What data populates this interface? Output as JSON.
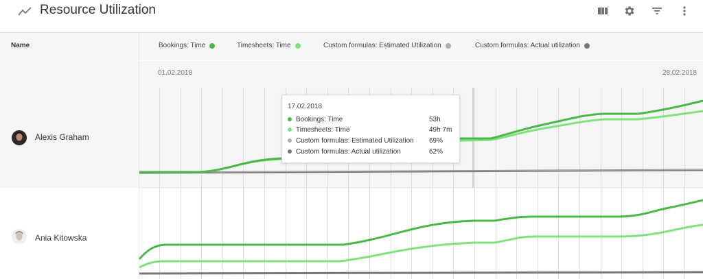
{
  "header": {
    "title": "Resource Utilization",
    "icons": [
      "trending-icon",
      "columns-icon",
      "gear-icon",
      "filter-icon",
      "more-vert-icon"
    ]
  },
  "table": {
    "name_column_label": "Name"
  },
  "legend": [
    {
      "label": "Bookings: Time",
      "color": "#4cb748"
    },
    {
      "label": "Timesheets: Time",
      "color": "#82e07e"
    },
    {
      "label": "Custom formulas: Estimated Utilization",
      "color": "#b0b0b0"
    },
    {
      "label": "Custom formulas: Actual utilization",
      "color": "#777777"
    }
  ],
  "dates": {
    "start": "01.02.2018",
    "end": "28.02.2018"
  },
  "rows": [
    {
      "name": "Alexis Graham"
    },
    {
      "name": "Ania Kitowska"
    }
  ],
  "tooltip": {
    "date": "17.02.2018",
    "items": [
      {
        "label": "Bookings: Time",
        "value": "53h",
        "color": "#4cb748"
      },
      {
        "label": "Timesheets: Time",
        "value": "49h 7m",
        "color": "#82e07e"
      },
      {
        "label": "Custom formulas: Estimated Utilization",
        "value": "69%",
        "color": "#b0b0b0"
      },
      {
        "label": "Custom formulas: Actual utilization",
        "value": "62%",
        "color": "#777777"
      }
    ]
  }
}
